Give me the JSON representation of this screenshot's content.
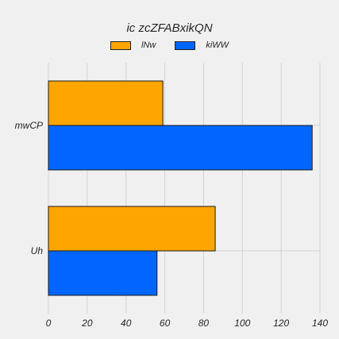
{
  "chart_data": {
    "type": "bar",
    "orientation": "horizontal",
    "title": "ic zcZFABxikQN",
    "xlabel": "",
    "ylabel": "",
    "categories": [
      "mwCP",
      "Uh"
    ],
    "series": [
      {
        "name": "lNw",
        "values": [
          59,
          86
        ],
        "color": "#ffa500"
      },
      {
        "name": "kiWW",
        "values": [
          136,
          56
        ],
        "color": "#0066ff"
      }
    ],
    "xlim": [
      0,
      140
    ],
    "xticks": [
      "0",
      "20",
      "40",
      "60",
      "80",
      "100",
      "120",
      "140"
    ],
    "grid": true,
    "legend_position": "top-center"
  }
}
